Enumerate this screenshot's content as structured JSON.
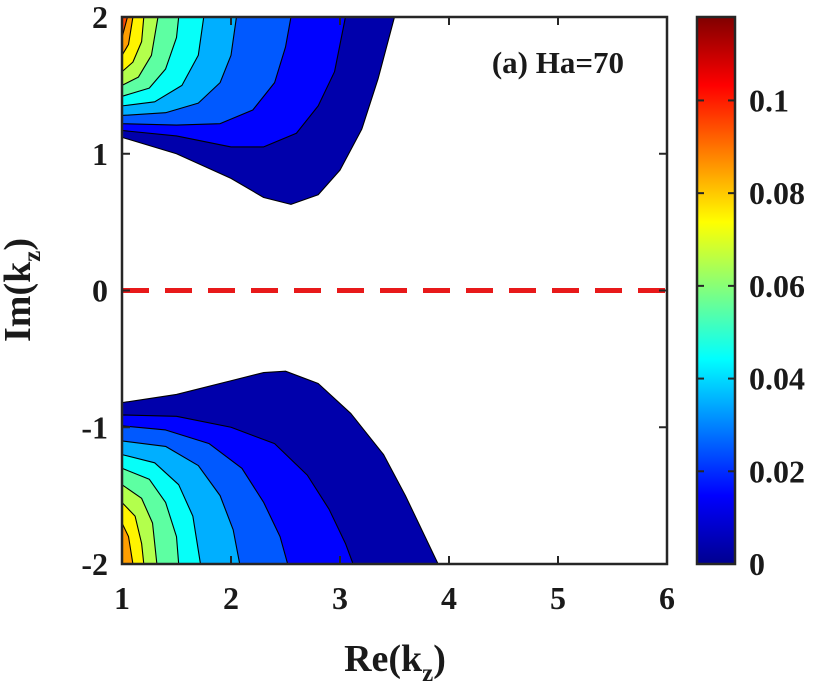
{
  "chart_data": {
    "type": "contour",
    "panel_label": "(a) Ha=70",
    "xlabel_main": "Re(k",
    "xlabel_sub": "z",
    "xlabel_close": ")",
    "ylabel_main": "Im(k",
    "ylabel_sub": "z",
    "ylabel_close": ")",
    "xlim": [
      1,
      6
    ],
    "ylim": [
      -2,
      2
    ],
    "xticks": [
      1,
      2,
      3,
      4,
      5,
      6
    ],
    "yticks": [
      -2,
      -1,
      0,
      1,
      2
    ],
    "xtick_labels": [
      "1",
      "2",
      "3",
      "4",
      "5",
      "6"
    ],
    "ytick_labels": [
      "-2",
      "-1",
      "0",
      "1",
      "2"
    ],
    "reference_line": {
      "y": 0,
      "style": "dashed",
      "color": "#e8191a"
    },
    "colorbar": {
      "min": 0,
      "max": 0.118,
      "ticks": [
        0,
        0.02,
        0.04,
        0.06,
        0.08,
        0.1
      ],
      "tick_labels": [
        "0",
        "0.02",
        "0.04",
        "0.06",
        "0.08",
        "0.1"
      ],
      "colormap": "jet"
    },
    "contour_levels": [
      0,
      0.01,
      0.02,
      0.03,
      0.04,
      0.05,
      0.06,
      0.07,
      0.08,
      0.09,
      0.1,
      0.11
    ],
    "upper_region": {
      "boundaries": [
        [
          [
            1.0,
            1.12
          ],
          [
            1.5,
            1.0
          ],
          [
            2.0,
            0.82
          ],
          [
            2.3,
            0.68
          ],
          [
            2.55,
            0.63
          ],
          [
            2.8,
            0.7
          ],
          [
            3.0,
            0.88
          ],
          [
            3.2,
            1.18
          ],
          [
            3.35,
            1.55
          ],
          [
            3.5,
            2.0
          ]
        ],
        [
          [
            1.0,
            1.17
          ],
          [
            1.5,
            1.13
          ],
          [
            2.0,
            1.05
          ],
          [
            2.3,
            1.05
          ],
          [
            2.6,
            1.15
          ],
          [
            2.8,
            1.35
          ],
          [
            2.95,
            1.6
          ],
          [
            3.0,
            1.8
          ],
          [
            3.05,
            2.0
          ]
        ],
        [
          [
            1.0,
            1.22
          ],
          [
            1.5,
            1.21
          ],
          [
            1.9,
            1.22
          ],
          [
            2.2,
            1.32
          ],
          [
            2.4,
            1.52
          ],
          [
            2.5,
            1.78
          ],
          [
            2.55,
            2.0
          ]
        ],
        [
          [
            1.0,
            1.28
          ],
          [
            1.4,
            1.3
          ],
          [
            1.7,
            1.37
          ],
          [
            1.9,
            1.52
          ],
          [
            2.0,
            1.72
          ],
          [
            2.05,
            2.0
          ]
        ],
        [
          [
            1.0,
            1.35
          ],
          [
            1.3,
            1.38
          ],
          [
            1.55,
            1.5
          ],
          [
            1.7,
            1.72
          ],
          [
            1.75,
            2.0
          ]
        ],
        [
          [
            1.0,
            1.42
          ],
          [
            1.25,
            1.48
          ],
          [
            1.4,
            1.62
          ],
          [
            1.5,
            1.85
          ],
          [
            1.52,
            2.0
          ]
        ],
        [
          [
            1.0,
            1.5
          ],
          [
            1.15,
            1.56
          ],
          [
            1.27,
            1.72
          ],
          [
            1.33,
            2.0
          ]
        ],
        [
          [
            1.0,
            1.6
          ],
          [
            1.1,
            1.67
          ],
          [
            1.18,
            1.82
          ],
          [
            1.2,
            2.0
          ]
        ],
        [
          [
            1.0,
            1.72
          ],
          [
            1.06,
            1.8
          ],
          [
            1.1,
            2.0
          ]
        ],
        [
          [
            1.0,
            1.85
          ],
          [
            1.05,
            2.0
          ]
        ]
      ]
    },
    "lower_region": {
      "boundaries": [
        [
          [
            1.0,
            -0.82
          ],
          [
            1.5,
            -0.76
          ],
          [
            2.0,
            -0.66
          ],
          [
            2.3,
            -0.6
          ],
          [
            2.5,
            -0.59
          ],
          [
            2.8,
            -0.68
          ],
          [
            3.1,
            -0.9
          ],
          [
            3.4,
            -1.2
          ],
          [
            3.6,
            -1.5
          ],
          [
            3.78,
            -1.8
          ],
          [
            3.9,
            -2.0
          ]
        ],
        [
          [
            1.0,
            -0.91
          ],
          [
            1.5,
            -0.92
          ],
          [
            2.0,
            -1.0
          ],
          [
            2.4,
            -1.12
          ],
          [
            2.7,
            -1.35
          ],
          [
            2.9,
            -1.6
          ],
          [
            3.05,
            -1.85
          ],
          [
            3.12,
            -2.0
          ]
        ],
        [
          [
            1.0,
            -0.99
          ],
          [
            1.4,
            -1.02
          ],
          [
            1.8,
            -1.12
          ],
          [
            2.1,
            -1.3
          ],
          [
            2.3,
            -1.55
          ],
          [
            2.45,
            -1.8
          ],
          [
            2.52,
            -2.0
          ]
        ],
        [
          [
            1.0,
            -1.1
          ],
          [
            1.4,
            -1.14
          ],
          [
            1.7,
            -1.28
          ],
          [
            1.9,
            -1.5
          ],
          [
            2.02,
            -1.75
          ],
          [
            2.08,
            -2.0
          ]
        ],
        [
          [
            1.0,
            -1.2
          ],
          [
            1.3,
            -1.26
          ],
          [
            1.52,
            -1.42
          ],
          [
            1.65,
            -1.65
          ],
          [
            1.72,
            -2.0
          ]
        ],
        [
          [
            1.0,
            -1.3
          ],
          [
            1.25,
            -1.38
          ],
          [
            1.4,
            -1.55
          ],
          [
            1.5,
            -1.8
          ],
          [
            1.52,
            -2.0
          ]
        ],
        [
          [
            1.0,
            -1.42
          ],
          [
            1.18,
            -1.52
          ],
          [
            1.28,
            -1.7
          ],
          [
            1.32,
            -2.0
          ]
        ],
        [
          [
            1.0,
            -1.55
          ],
          [
            1.12,
            -1.65
          ],
          [
            1.18,
            -1.85
          ],
          [
            1.2,
            -2.0
          ]
        ],
        [
          [
            1.0,
            -1.7
          ],
          [
            1.06,
            -1.8
          ],
          [
            1.1,
            -2.0
          ]
        ]
      ]
    }
  }
}
